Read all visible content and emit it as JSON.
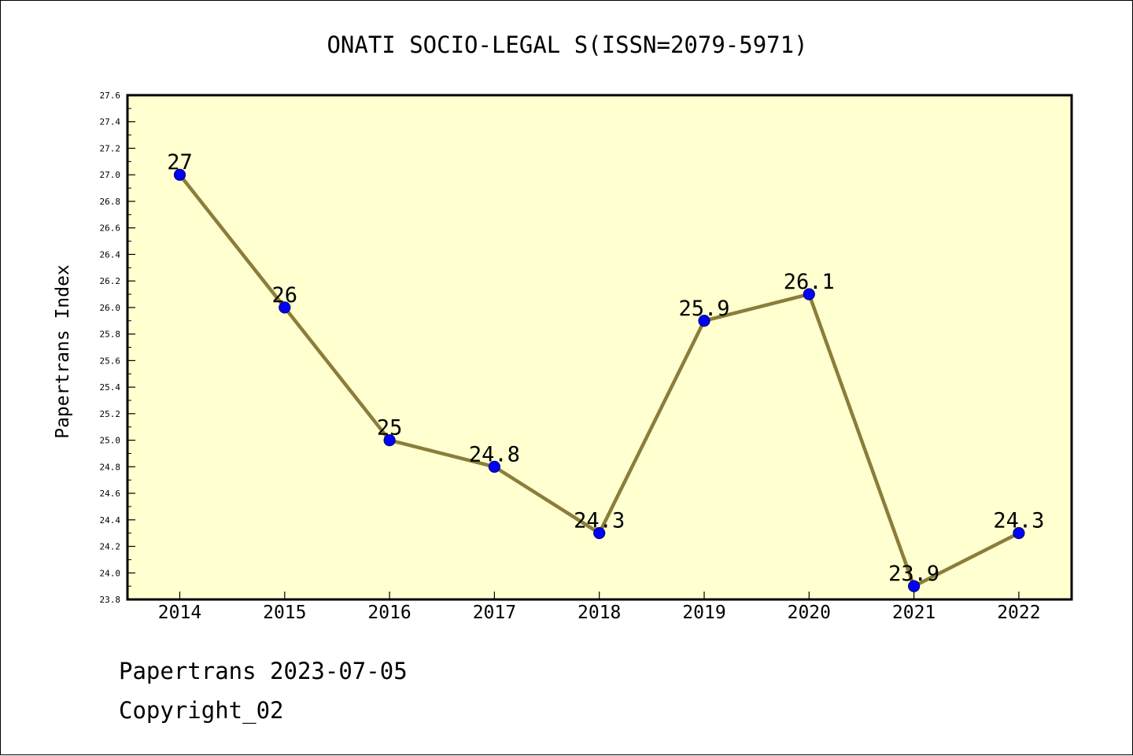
{
  "chart_data": {
    "type": "line",
    "title": "ONATI SOCIO-LEGAL S(ISSN=2079-5971)",
    "xlabel": "",
    "ylabel": "Papertrans Index",
    "categories": [
      "2014",
      "2015",
      "2016",
      "2017",
      "2018",
      "2019",
      "2020",
      "2021",
      "2022"
    ],
    "series": [
      {
        "values": [
          27,
          26,
          25,
          24.8,
          24.3,
          25.9,
          26.1,
          23.9,
          24.3
        ],
        "data_labels": [
          "27",
          "26",
          "25",
          "24.8",
          "24.3",
          "25.9",
          "26.1",
          "23.9",
          "24.3"
        ]
      }
    ],
    "ylim": [
      23.8,
      27.6
    ],
    "yticks": [
      "23.8",
      "24.0",
      "24.2",
      "24.4",
      "24.6",
      "24.8",
      "25.0",
      "25.2",
      "25.4",
      "25.6",
      "25.8",
      "26.0",
      "26.2",
      "26.4",
      "26.6",
      "26.8",
      "27.0",
      "27.2",
      "27.4",
      "27.6"
    ],
    "grid": false,
    "colors": {
      "plot_background": "#ffffd0",
      "line": "#8b7d3a",
      "marker": "#0000ff"
    }
  },
  "footer": {
    "line1": "Papertrans 2023-07-05",
    "line2": "Copyright_02"
  }
}
